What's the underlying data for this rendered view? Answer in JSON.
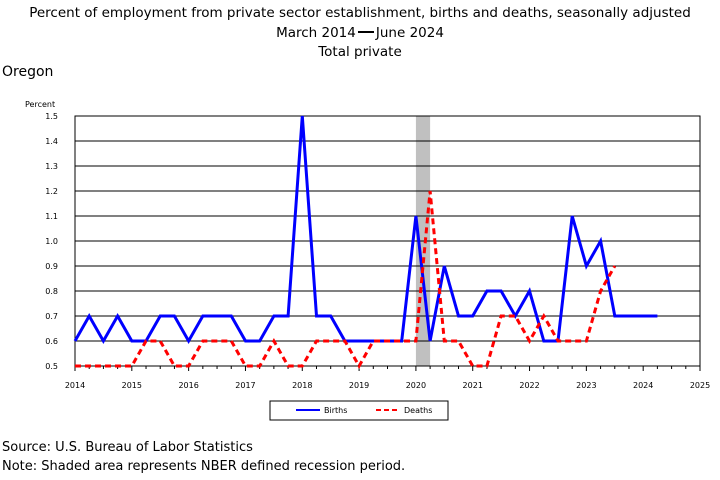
{
  "title": {
    "line1": "Percent of employment from private sector establishment, births and deaths, seasonally adjusted",
    "line2_start": "March 2014",
    "line2_end": "June 2024",
    "line3": "Total private"
  },
  "region_label": "Oregon",
  "footer": {
    "source": "Source: U.S. Bureau of Labor Statistics",
    "note": "Note: Shaded area represents NBER defined recession period."
  },
  "colors": {
    "births": "#0000ff",
    "deaths": "#ff0000",
    "recession": "#c0c0c0"
  },
  "chart_data": {
    "type": "line",
    "ylabel": "Percent",
    "ylim": [
      0.5,
      1.5
    ],
    "yticks": [
      "0.5",
      "0.6",
      "0.7",
      "0.8",
      "0.9",
      "1.0",
      "1.1",
      "1.2",
      "1.3",
      "1.4",
      "1.5"
    ],
    "xlim": [
      2014,
      2025
    ],
    "xticks": [
      "2014",
      "2015",
      "2016",
      "2017",
      "2018",
      "2019",
      "2020",
      "2021",
      "2022",
      "2023",
      "2024",
      "2025"
    ],
    "grid": "horizontal",
    "legend_position": "bottom",
    "recession": {
      "start": "2020 Q1",
      "end": "2020 Q2"
    },
    "series": [
      {
        "name": "Births",
        "style": "solid",
        "points": [
          [
            "2014 Q1",
            0.6
          ],
          [
            "2014 Q2",
            0.7
          ],
          [
            "2014 Q3",
            0.6
          ],
          [
            "2014 Q4",
            0.7
          ],
          [
            "2015 Q1",
            0.6
          ],
          [
            "2015 Q2",
            0.6
          ],
          [
            "2015 Q3",
            0.7
          ],
          [
            "2015 Q4",
            0.7
          ],
          [
            "2016 Q1",
            0.6
          ],
          [
            "2016 Q2",
            0.7
          ],
          [
            "2016 Q3",
            0.7
          ],
          [
            "2016 Q4",
            0.7
          ],
          [
            "2017 Q1",
            0.6
          ],
          [
            "2017 Q2",
            0.6
          ],
          [
            "2017 Q3",
            0.7
          ],
          [
            "2017 Q4",
            0.7
          ],
          [
            "2018 Q1",
            1.5
          ],
          [
            "2018 Q2",
            0.7
          ],
          [
            "2018 Q3",
            0.7
          ],
          [
            "2018 Q4",
            0.6
          ],
          [
            "2019 Q1",
            0.6
          ],
          [
            "2019 Q2",
            0.6
          ],
          [
            "2019 Q3",
            0.6
          ],
          [
            "2019 Q4",
            0.6
          ],
          [
            "2020 Q1",
            1.1
          ],
          [
            "2020 Q2",
            0.6
          ],
          [
            "2020 Q3",
            0.9
          ],
          [
            "2020 Q4",
            0.7
          ],
          [
            "2021 Q1",
            0.7
          ],
          [
            "2021 Q2",
            0.8
          ],
          [
            "2021 Q3",
            0.8
          ],
          [
            "2021 Q4",
            0.7
          ],
          [
            "2022 Q1",
            0.8
          ],
          [
            "2022 Q2",
            0.6
          ],
          [
            "2022 Q3",
            0.6
          ],
          [
            "2022 Q4",
            1.1
          ],
          [
            "2023 Q1",
            0.9
          ],
          [
            "2023 Q2",
            1.0
          ],
          [
            "2023 Q3",
            0.7
          ],
          [
            "2023 Q4",
            0.7
          ],
          [
            "2024 Q1",
            0.7
          ],
          [
            "2024 Q2",
            0.7
          ]
        ]
      },
      {
        "name": "Deaths",
        "style": "dashed",
        "points": [
          [
            "2014 Q1",
            0.5
          ],
          [
            "2014 Q2",
            0.5
          ],
          [
            "2014 Q3",
            0.5
          ],
          [
            "2014 Q4",
            0.5
          ],
          [
            "2015 Q1",
            0.5
          ],
          [
            "2015 Q2",
            0.6
          ],
          [
            "2015 Q3",
            0.6
          ],
          [
            "2015 Q4",
            0.5
          ],
          [
            "2016 Q1",
            0.5
          ],
          [
            "2016 Q2",
            0.6
          ],
          [
            "2016 Q3",
            0.6
          ],
          [
            "2016 Q4",
            0.6
          ],
          [
            "2017 Q1",
            0.5
          ],
          [
            "2017 Q2",
            0.5
          ],
          [
            "2017 Q3",
            0.6
          ],
          [
            "2017 Q4",
            0.5
          ],
          [
            "2018 Q1",
            0.5
          ],
          [
            "2018 Q2",
            0.6
          ],
          [
            "2018 Q3",
            0.6
          ],
          [
            "2018 Q4",
            0.6
          ],
          [
            "2019 Q1",
            0.5
          ],
          [
            "2019 Q2",
            0.6
          ],
          [
            "2019 Q3",
            0.6
          ],
          [
            "2019 Q4",
            0.6
          ],
          [
            "2020 Q1",
            0.6
          ],
          [
            "2020 Q2",
            1.2
          ],
          [
            "2020 Q3",
            0.6
          ],
          [
            "2020 Q4",
            0.6
          ],
          [
            "2021 Q1",
            0.5
          ],
          [
            "2021 Q2",
            0.5
          ],
          [
            "2021 Q3",
            0.7
          ],
          [
            "2021 Q4",
            0.7
          ],
          [
            "2022 Q1",
            0.6
          ],
          [
            "2022 Q2",
            0.7
          ],
          [
            "2022 Q3",
            0.6
          ],
          [
            "2022 Q4",
            0.6
          ],
          [
            "2023 Q1",
            0.6
          ],
          [
            "2023 Q2",
            0.8
          ],
          [
            "2023 Q3",
            0.9
          ]
        ]
      }
    ]
  }
}
